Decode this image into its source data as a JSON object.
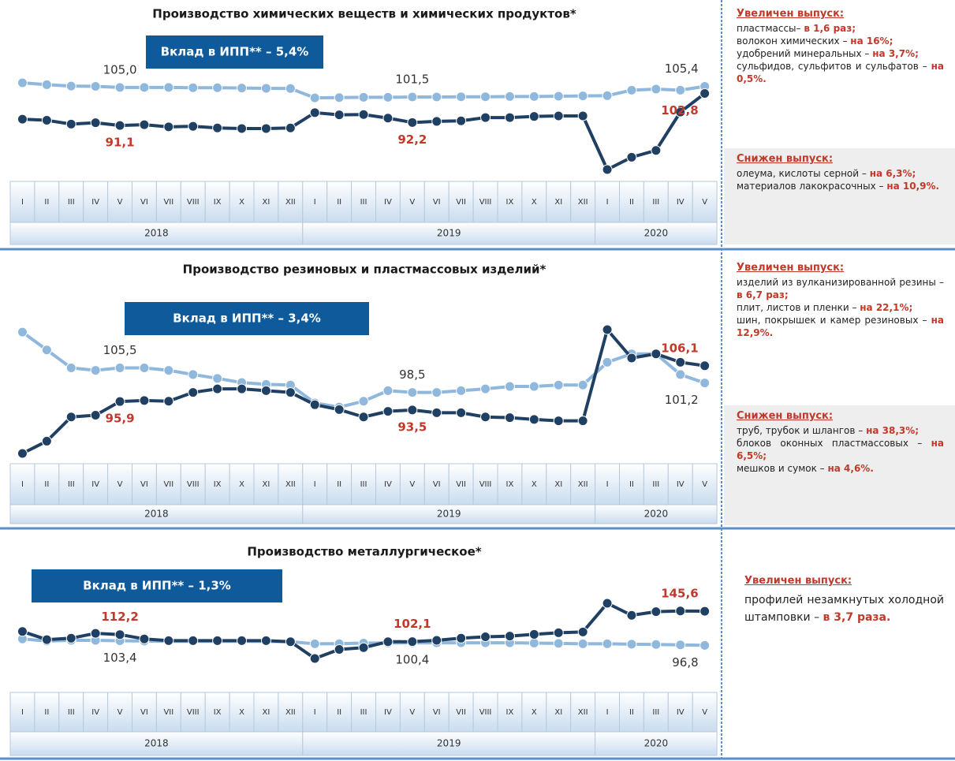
{
  "chart_data": [
    {
      "type": "line",
      "title": "Производство химических веществ и химических продуктов*",
      "badge": "Вклад в ИПП** – 5,4%",
      "categories": [
        "I",
        "II",
        "III",
        "IV",
        "V",
        "VI",
        "VII",
        "VIII",
        "IX",
        "X",
        "XI",
        "XII",
        "I",
        "II",
        "III",
        "IV",
        "V",
        "VI",
        "VII",
        "VIII",
        "IX",
        "X",
        "XI",
        "XII",
        "I",
        "II",
        "III",
        "IV",
        "V"
      ],
      "years": [
        "2018",
        "2019",
        "2020"
      ],
      "series": [
        {
          "name": null,
          "color": "#8fb8dc",
          "label_color": "#333333",
          "values": [
            106.7,
            106.0,
            105.5,
            105.4,
            105.0,
            105.0,
            105.0,
            104.9,
            104.9,
            104.8,
            104.7,
            104.6,
            101.2,
            101.3,
            101.4,
            101.4,
            101.5,
            101.5,
            101.6,
            101.6,
            101.7,
            101.7,
            101.8,
            101.9,
            102.0,
            104.0,
            104.4,
            104.0,
            105.4
          ],
          "value_labels": [
            null,
            null,
            null,
            null,
            "105,0",
            null,
            null,
            null,
            null,
            null,
            null,
            null,
            null,
            null,
            null,
            null,
            "101,5",
            null,
            null,
            null,
            null,
            null,
            null,
            null,
            null,
            null,
            null,
            null,
            "105,4"
          ]
        },
        {
          "name": null,
          "color": "#1f3f63",
          "label_color": "#c0392b",
          "values": [
            93.4,
            93.0,
            91.6,
            92.1,
            91.1,
            91.4,
            90.6,
            90.8,
            90.2,
            90.0,
            90.0,
            90.2,
            95.8,
            95.0,
            95.1,
            93.8,
            92.2,
            92.6,
            92.8,
            94.0,
            94.0,
            94.4,
            94.6,
            94.6,
            75.0,
            79.5,
            82.0,
            96.0,
            102.8
          ],
          "value_labels": [
            null,
            null,
            null,
            null,
            "91,1",
            null,
            null,
            null,
            null,
            null,
            null,
            null,
            null,
            null,
            null,
            null,
            "92,2",
            null,
            null,
            null,
            null,
            null,
            null,
            null,
            null,
            null,
            null,
            null,
            "102,8"
          ]
        }
      ],
      "side": [
        {
          "heading": "Увеличен выпуск:",
          "items": [
            [
              "пластмассы– ",
              "в 1,6 раз;"
            ],
            [
              "волокон химических – ",
              "на 16%;"
            ],
            [
              "удобрений минеральных – ",
              "на 3,7%;"
            ],
            [
              "сульфидов, сульфитов и сульфатов – ",
              "на 0,5%."
            ]
          ]
        },
        {
          "heading": "Снижен выпуск:",
          "items": [
            [
              "олеума, кислоты серной – ",
              "на 6,3%;"
            ],
            [
              "материалов лакокрасочных – ",
              "на 10,9%."
            ]
          ]
        }
      ]
    },
    {
      "type": "line",
      "title": "Производство резиновых и пластмассовых изделий*",
      "badge": "Вклад в ИПП** – 3,4%",
      "categories": [
        "I",
        "II",
        "III",
        "IV",
        "V",
        "VI",
        "VII",
        "VIII",
        "IX",
        "X",
        "XI",
        "XII",
        "I",
        "II",
        "III",
        "IV",
        "V",
        "VI",
        "VII",
        "VIII",
        "IX",
        "X",
        "XI",
        "XII",
        "I",
        "II",
        "III",
        "IV",
        "V"
      ],
      "years": [
        "2018",
        "2019",
        "2020"
      ],
      "series": [
        {
          "name": null,
          "color": "#8fb8dc",
          "label_color": "#333333",
          "values": [
            115.7,
            110.6,
            105.5,
            104.8,
            105.5,
            105.5,
            104.8,
            103.6,
            102.5,
            101.3,
            100.8,
            100.6,
            95.5,
            94.3,
            96.0,
            99.0,
            98.5,
            98.5,
            99.0,
            99.5,
            100.2,
            100.2,
            100.6,
            100.6,
            107.1,
            109.5,
            109.5,
            103.6,
            101.2
          ],
          "value_labels": [
            null,
            null,
            null,
            null,
            "105,5",
            null,
            null,
            null,
            null,
            null,
            null,
            null,
            null,
            null,
            null,
            null,
            "98,5",
            null,
            null,
            null,
            null,
            null,
            null,
            null,
            null,
            null,
            null,
            null,
            "101,2"
          ]
        },
        {
          "name": null,
          "color": "#1f3f63",
          "label_color": "#c0392b",
          "values": [
            81.1,
            84.6,
            91.5,
            92.0,
            95.9,
            96.2,
            96.0,
            98.5,
            99.5,
            99.5,
            99.0,
            98.5,
            95.0,
            93.6,
            91.5,
            93.1,
            93.5,
            92.7,
            92.7,
            91.5,
            91.3,
            90.8,
            90.4,
            90.4,
            116.4,
            108.3,
            109.5,
            107.1,
            106.1
          ],
          "value_labels": [
            null,
            null,
            null,
            null,
            "95,9",
            null,
            null,
            null,
            null,
            null,
            null,
            null,
            null,
            null,
            null,
            null,
            "93,5",
            null,
            null,
            null,
            null,
            null,
            null,
            null,
            null,
            null,
            null,
            null,
            "106,1"
          ]
        }
      ],
      "side": [
        {
          "heading": "Увеличен выпуск:",
          "items": [
            [
              "изделий из вулканизированной резины – ",
              "в 6,7 раз;"
            ],
            [
              "плит, листов и пленки – ",
              "на 22,1%;"
            ],
            [
              "шин, покрышек и камер резиновых – ",
              "на 12,9%."
            ]
          ]
        },
        {
          "heading": "Снижен выпуск:",
          "items": [
            [
              "труб, трубок и шлангов – ",
              "на 38,3%;"
            ],
            [
              "блоков оконных пластмассовых – ",
              "на 6,5%;"
            ],
            [
              "мешков и сумок – ",
              "на 4,6%."
            ]
          ]
        }
      ]
    },
    {
      "type": "line",
      "title": "Производство металлургическое*",
      "badge": "Вклад в ИПП** – 1,3%",
      "categories": [
        "I",
        "II",
        "III",
        "IV",
        "V",
        "VI",
        "VII",
        "VIII",
        "IX",
        "X",
        "XI",
        "XII",
        "I",
        "II",
        "III",
        "IV",
        "V",
        "VI",
        "VII",
        "VIII",
        "IX",
        "X",
        "XI",
        "XII",
        "I",
        "II",
        "III",
        "IV",
        "V"
      ],
      "years": [
        "2018",
        "2019",
        "2020"
      ],
      "series": [
        {
          "name": null,
          "color": "#8fb8dc",
          "label_color": "#333333",
          "values": [
            106.0,
            103.0,
            104.0,
            104.0,
            103.4,
            103.0,
            102.5,
            102.5,
            102.5,
            102.5,
            102.4,
            102.0,
            99.0,
            99.2,
            100.0,
            100.2,
            100.4,
            100.5,
            100.5,
            100.5,
            100.4,
            100.0,
            99.6,
            99.0,
            99.0,
            98.5,
            98.0,
            97.5,
            96.8
          ],
          "value_labels": [
            null,
            null,
            null,
            null,
            "103,4",
            null,
            null,
            null,
            null,
            null,
            null,
            null,
            null,
            null,
            null,
            null,
            "100,4",
            null,
            null,
            null,
            null,
            null,
            null,
            null,
            null,
            null,
            null,
            null,
            "96,8"
          ]
        },
        {
          "name": null,
          "color": "#1f3f63",
          "label_color": "#c0392b",
          "values": [
            116.6,
            105.0,
            107.0,
            114.0,
            112.2,
            106.0,
            103.5,
            103.5,
            103.5,
            103.5,
            103.5,
            102.0,
            78.0,
            91.0,
            93.5,
            102.0,
            102.1,
            104.0,
            107.0,
            109.0,
            110.0,
            112.5,
            114.8,
            116.0,
            157.0,
            139.8,
            145.0,
            146.0,
            145.6
          ],
          "value_labels": [
            null,
            null,
            null,
            null,
            "112,2",
            null,
            null,
            null,
            null,
            null,
            null,
            null,
            null,
            null,
            null,
            null,
            "102,1",
            null,
            null,
            null,
            null,
            null,
            null,
            null,
            null,
            null,
            null,
            null,
            "145,6"
          ]
        }
      ],
      "side": [
        {
          "heading": "Увеличен выпуск:",
          "items": [
            [
              "профилей незамкнутых холодной штамповки – ",
              "в 3,7 раза."
            ]
          ]
        }
      ]
    }
  ]
}
